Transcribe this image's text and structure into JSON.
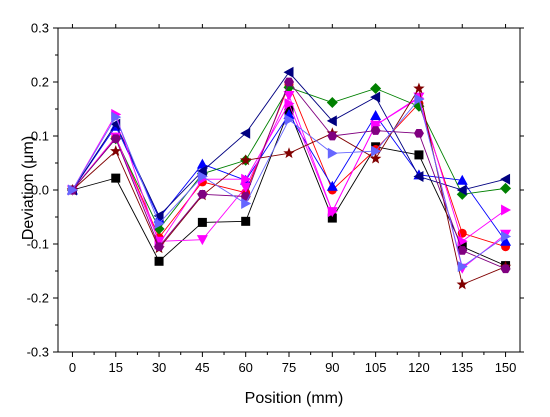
{
  "chart_data": {
    "type": "line",
    "title": "",
    "xlabel": "Position (mm)",
    "ylabel": "Deviation (μm)",
    "x": [
      0,
      15,
      30,
      45,
      60,
      75,
      90,
      105,
      120,
      135,
      150
    ],
    "xlim": [
      -5,
      155
    ],
    "ylim": [
      -0.3,
      0.3
    ],
    "x_ticks": [
      "0",
      "15",
      "30",
      "45",
      "60",
      "75",
      "90",
      "105",
      "120",
      "135",
      "150"
    ],
    "y_ticks": [
      "-0.3",
      "-0.2",
      "-0.1",
      "0.0",
      "0.1",
      "0.2",
      "0.3"
    ],
    "y_tick_values": [
      -0.3,
      -0.2,
      -0.1,
      0.0,
      0.1,
      0.2,
      0.3
    ],
    "grid": false,
    "legend": "none",
    "series": [
      {
        "color": "#000000",
        "marker": "square",
        "values": [
          0,
          0.022,
          -0.132,
          -0.06,
          -0.058,
          0.148,
          -0.052,
          0.08,
          0.065,
          -0.105,
          -0.14
        ]
      },
      {
        "color": "#ff0000",
        "marker": "circle",
        "values": [
          0,
          0.098,
          -0.088,
          0.015,
          -0.005,
          0.195,
          0.0,
          0.075,
          0.16,
          -0.08,
          -0.105
        ]
      },
      {
        "color": "#0000ff",
        "marker": "triangle-up",
        "values": [
          0,
          0.118,
          -0.052,
          0.048,
          0.018,
          0.14,
          0.007,
          0.138,
          0.028,
          0.018,
          -0.095
        ]
      },
      {
        "color": "#008000",
        "marker": "diamond",
        "values": [
          0,
          0.095,
          -0.072,
          0.03,
          0.055,
          0.19,
          0.162,
          0.188,
          0.155,
          -0.008,
          0.003
        ]
      },
      {
        "color": "#000080",
        "marker": "triangle-left",
        "values": [
          0,
          0.122,
          -0.048,
          0.035,
          0.105,
          0.218,
          0.128,
          0.172,
          0.025,
          0.0,
          0.02
        ]
      },
      {
        "color": "#ff00ff",
        "marker": "triangle-down",
        "values": [
          0,
          0.098,
          -0.095,
          -0.092,
          0.005,
          0.175,
          -0.04,
          0.12,
          0.172,
          -0.145,
          -0.082
        ]
      },
      {
        "color": "#ff00ff",
        "marker": "triangle-right",
        "values": [
          0,
          0.14,
          -0.1,
          0.02,
          0.02,
          0.16,
          -0.04,
          0.12,
          0.17,
          -0.095,
          -0.037
        ]
      },
      {
        "color": "#800000",
        "marker": "star",
        "values": [
          0,
          0.072,
          -0.108,
          -0.01,
          0.055,
          0.068,
          0.105,
          0.058,
          0.188,
          -0.175,
          -0.142
        ]
      },
      {
        "color": "#800080",
        "marker": "hexagon",
        "values": [
          0,
          0.095,
          -0.105,
          -0.008,
          -0.012,
          0.2,
          0.1,
          0.11,
          0.105,
          -0.112,
          -0.146
        ]
      },
      {
        "color": "#6666ff",
        "marker": "triangle-right",
        "values": [
          0,
          0.135,
          -0.062,
          0.025,
          -0.025,
          0.13,
          0.068,
          0.072,
          0.168,
          -0.142,
          -0.086
        ]
      }
    ]
  }
}
